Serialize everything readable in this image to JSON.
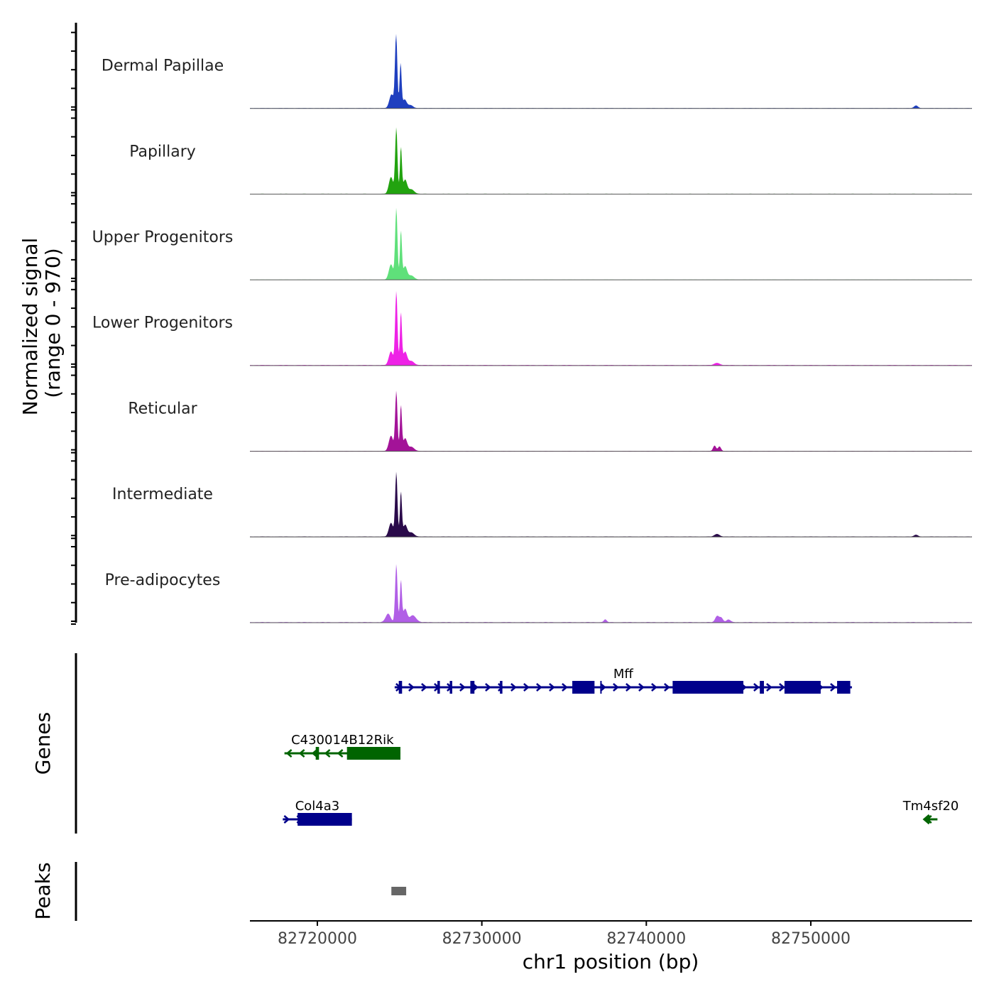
{
  "chart_data": {
    "type": "area",
    "title": "",
    "ylabel_line1": "Normalized signal",
    "ylabel_line2": "(range 0 - 970)",
    "xlabel": "chr1 position (bp)",
    "chromosome": "chr1",
    "xlim": [
      82715900,
      82759800
    ],
    "ylim": [
      0,
      970
    ],
    "x_ticks": [
      82720000,
      82730000,
      82740000,
      82750000
    ],
    "x_tick_labels": [
      "82720000",
      "82730000",
      "82740000",
      "82750000"
    ],
    "tracks": [
      {
        "name": "Dermal Papillae",
        "color": "#1f3fbf",
        "peaks": [
          {
            "center": 82724510,
            "height": 180,
            "width": 130
          },
          {
            "center": 82724790,
            "height": 970,
            "width": 70
          },
          {
            "center": 82725060,
            "height": 580,
            "width": 60
          },
          {
            "center": 82725300,
            "height": 110,
            "width": 120
          },
          {
            "center": 82725650,
            "height": 40,
            "width": 160
          },
          {
            "center": 82756400,
            "height": 35,
            "width": 110
          }
        ],
        "baseline": 6
      },
      {
        "name": "Papillary",
        "color": "#22a30f",
        "peaks": [
          {
            "center": 82724480,
            "height": 220,
            "width": 130
          },
          {
            "center": 82724800,
            "height": 860,
            "width": 70
          },
          {
            "center": 82725080,
            "height": 600,
            "width": 60
          },
          {
            "center": 82725330,
            "height": 180,
            "width": 120
          },
          {
            "center": 82725700,
            "height": 60,
            "width": 180
          }
        ],
        "baseline": 5
      },
      {
        "name": "Upper Progenitors",
        "color": "#5fe07a",
        "peaks": [
          {
            "center": 82724480,
            "height": 200,
            "width": 130
          },
          {
            "center": 82724800,
            "height": 930,
            "width": 70
          },
          {
            "center": 82725080,
            "height": 630,
            "width": 60
          },
          {
            "center": 82725330,
            "height": 170,
            "width": 120
          },
          {
            "center": 82725700,
            "height": 55,
            "width": 180
          }
        ],
        "baseline": 4
      },
      {
        "name": "Lower Progenitors",
        "color": "#ee22e6",
        "peaks": [
          {
            "center": 82724480,
            "height": 180,
            "width": 130
          },
          {
            "center": 82724800,
            "height": 970,
            "width": 70
          },
          {
            "center": 82725080,
            "height": 680,
            "width": 60
          },
          {
            "center": 82725330,
            "height": 170,
            "width": 120
          },
          {
            "center": 82725700,
            "height": 55,
            "width": 180
          },
          {
            "center": 82744300,
            "height": 30,
            "width": 160
          }
        ],
        "baseline": 8
      },
      {
        "name": "Reticular",
        "color": "#a31398",
        "peaks": [
          {
            "center": 82724480,
            "height": 200,
            "width": 130
          },
          {
            "center": 82724800,
            "height": 780,
            "width": 70
          },
          {
            "center": 82725080,
            "height": 590,
            "width": 60
          },
          {
            "center": 82725330,
            "height": 160,
            "width": 120
          },
          {
            "center": 82725700,
            "height": 55,
            "width": 180
          },
          {
            "center": 82744150,
            "height": 70,
            "width": 90
          },
          {
            "center": 82744450,
            "height": 60,
            "width": 90
          }
        ],
        "baseline": 5
      },
      {
        "name": "Intermediate",
        "color": "#2a0a4a",
        "peaks": [
          {
            "center": 82724480,
            "height": 180,
            "width": 130
          },
          {
            "center": 82724800,
            "height": 840,
            "width": 70
          },
          {
            "center": 82725080,
            "height": 580,
            "width": 60
          },
          {
            "center": 82725330,
            "height": 150,
            "width": 120
          },
          {
            "center": 82725700,
            "height": 55,
            "width": 180
          },
          {
            "center": 82744300,
            "height": 35,
            "width": 150
          },
          {
            "center": 82756400,
            "height": 25,
            "width": 110
          }
        ],
        "baseline": 7
      },
      {
        "name": "Pre-adipocytes",
        "color": "#b15fe6",
        "peaks": [
          {
            "center": 82724300,
            "height": 110,
            "width": 150
          },
          {
            "center": 82724800,
            "height": 760,
            "width": 70
          },
          {
            "center": 82725080,
            "height": 540,
            "width": 60
          },
          {
            "center": 82725330,
            "height": 170,
            "width": 120
          },
          {
            "center": 82725800,
            "height": 90,
            "width": 200
          },
          {
            "center": 82737500,
            "height": 35,
            "width": 90
          },
          {
            "center": 82744300,
            "height": 80,
            "width": 110
          },
          {
            "center": 82744550,
            "height": 60,
            "width": 110
          },
          {
            "center": 82745000,
            "height": 35,
            "width": 120
          }
        ],
        "baseline": 9
      }
    ],
    "genes_label": "Genes",
    "genes": [
      {
        "name": "Mff",
        "strand": "+",
        "row": 0,
        "color": "#00008b",
        "start": 82724700,
        "end": 82752500,
        "exons": [
          [
            82724950,
            82725150
          ],
          [
            82727300,
            82727450
          ],
          [
            82728050,
            82728200
          ],
          [
            82729300,
            82729550
          ],
          [
            82731100,
            82731250
          ],
          [
            82735500,
            82736850
          ],
          [
            82741600,
            82745900
          ],
          [
            82746900,
            82747150
          ],
          [
            82748400,
            82750600
          ],
          [
            82751600,
            82752400
          ]
        ],
        "cds_small": [
          [
            82737200,
            82737280
          ]
        ]
      },
      {
        "name": "C430014B12Rik",
        "strand": "-",
        "row": 1,
        "color": "#006400",
        "start": 82718000,
        "end": 82725050,
        "exons": [
          [
            82719900,
            82720100
          ],
          [
            82721800,
            82725050
          ]
        ],
        "cds_small": []
      },
      {
        "name": "Col4a3",
        "strand": "+",
        "row": 2,
        "color": "#00008b",
        "start": 82717900,
        "end": 82722100,
        "exons": [
          [
            82718800,
            82722100
          ]
        ],
        "cds_small": []
      },
      {
        "name": "Tm4sf20",
        "strand": "-",
        "row": 2,
        "color": "#006400",
        "start": 82756900,
        "end": 82757700,
        "exons": [],
        "cds_small": []
      }
    ],
    "peaks_label": "Peaks",
    "peak_regions": [
      {
        "start": 82724500,
        "end": 82725400,
        "color": "#666666"
      }
    ]
  }
}
